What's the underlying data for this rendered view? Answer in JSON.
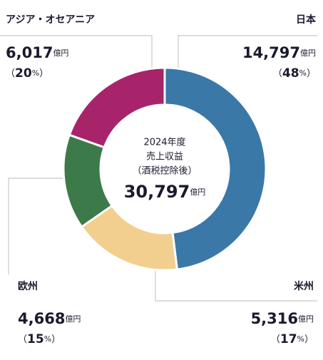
{
  "chart_data": {
    "type": "donut",
    "center_lines": [
      "2024年度",
      "売上収益",
      "（酒税控除後）"
    ],
    "total": {
      "value": 30797,
      "label": "30,797"
    },
    "unit": "億円",
    "percent_sign": "%",
    "paren_open": "（",
    "paren_close": "）",
    "categories": [
      "日本",
      "米州",
      "欧州",
      "アジア・オセアニア"
    ],
    "values": [
      14797,
      5316,
      4668,
      6017
    ],
    "value_labels": [
      "14,797",
      "5,316",
      "4,668",
      "6,017"
    ],
    "percents": [
      48,
      17,
      15,
      20
    ],
    "colors": [
      "#3a78a8",
      "#f2cf8f",
      "#3d7a4a",
      "#a8246a"
    ]
  }
}
